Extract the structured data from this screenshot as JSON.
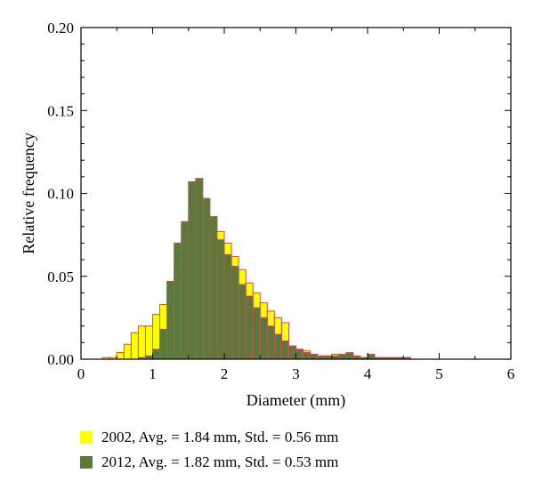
{
  "chart_data": {
    "type": "bar",
    "title": "",
    "xlabel": "Diameter (mm)",
    "ylabel": "Relative frequency",
    "xlim": [
      0,
      6
    ],
    "ylim": [
      0,
      0.2
    ],
    "xticks": [
      "0",
      "1",
      "2",
      "3",
      "4",
      "5",
      "6"
    ],
    "yticks": [
      "0.00",
      "0.05",
      "0.10",
      "0.15",
      "0.20"
    ],
    "bin_width": 0.1,
    "bin_edges_start": [
      0.3,
      0.4,
      0.5,
      0.6,
      0.7,
      0.8,
      0.9,
      1.0,
      1.1,
      1.2,
      1.3,
      1.4,
      1.5,
      1.6,
      1.7,
      1.8,
      1.9,
      2.0,
      2.1,
      2.2,
      2.3,
      2.4,
      2.5,
      2.6,
      2.7,
      2.8,
      2.9,
      3.0,
      3.1,
      3.2,
      3.3,
      3.4,
      3.5,
      3.6,
      3.7,
      3.8,
      3.9,
      4.0,
      4.1,
      4.2,
      4.3,
      4.4,
      4.5
    ],
    "edge_color": "#d04a5a",
    "series": [
      {
        "name": "2002, Avg. = 1.84 mm, Std. = 0.56 mm",
        "color": "#ffff00",
        "values": [
          0.001,
          0.001,
          0.004,
          0.009,
          0.016,
          0.02,
          0.02,
          0.027,
          0.033,
          0.044,
          0.058,
          0.072,
          0.083,
          0.09,
          0.088,
          0.083,
          0.077,
          0.07,
          0.062,
          0.054,
          0.046,
          0.04,
          0.034,
          0.029,
          0.025,
          0.022,
          0.008,
          0.006,
          0.005,
          0.003,
          0.002,
          0.002,
          0.003,
          0.002,
          0.001,
          0.001,
          0.001,
          0.002,
          0.001,
          0.001,
          0.001,
          0.001,
          0.001
        ]
      },
      {
        "name": "2012, Avg. = 1.82 mm, Std. = 0.53 mm",
        "color": "#5a7a3a",
        "values": [
          0.0,
          0.0,
          0.0,
          0.0,
          0.0,
          0.001,
          0.002,
          0.006,
          0.018,
          0.047,
          0.07,
          0.083,
          0.107,
          0.109,
          0.097,
          0.086,
          0.072,
          0.063,
          0.056,
          0.045,
          0.038,
          0.031,
          0.025,
          0.02,
          0.015,
          0.011,
          0.008,
          0.006,
          0.004,
          0.003,
          0.002,
          0.002,
          0.002,
          0.003,
          0.004,
          0.002,
          0.001,
          0.003,
          0.001,
          0.001,
          0.001,
          0.001,
          0.001
        ]
      }
    ],
    "grid": false,
    "legend_position": "bottom-left"
  }
}
